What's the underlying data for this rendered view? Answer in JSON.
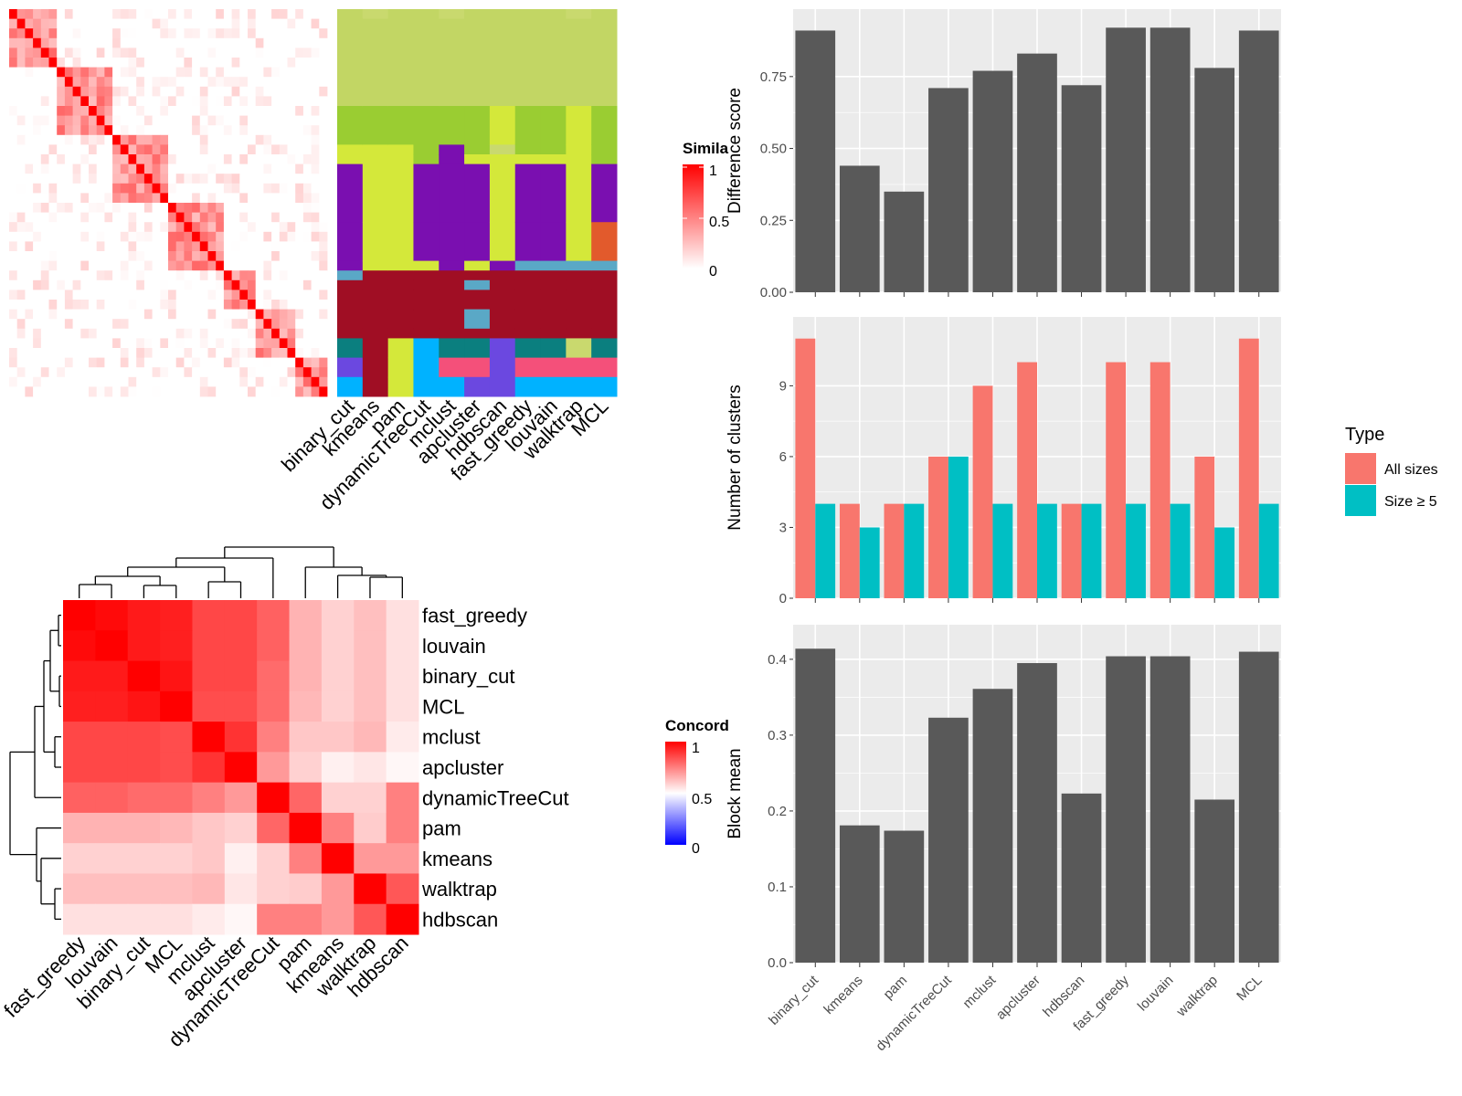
{
  "methods": [
    "binary_cut",
    "kmeans",
    "pam",
    "dynamicTreeCut",
    "mclust",
    "apcluster",
    "hdbscan",
    "fast_greedy",
    "louvain",
    "walktrap",
    "MCL"
  ],
  "similarity_panel": {
    "legend_title": "Simila",
    "legend_ticks": [
      "1",
      "0.5",
      "0"
    ],
    "colors": {
      "high": "#FF0000",
      "low": "#FFFFFF"
    },
    "n_items": 40
  },
  "membership_panel": {
    "palette": [
      "#C2D664",
      "#9ACD32",
      "#D4E83A",
      "#7A0FB0",
      "#A00E24",
      "#5AA8C6",
      "#0B7F7F",
      "#6B48E0",
      "#F4507A",
      "#00B2FF",
      "#E25A2C",
      "#C9D96E"
    ]
  },
  "concordance_panel": {
    "legend_title": "Concord",
    "legend_ticks": [
      "1",
      "0.5",
      "0"
    ],
    "colors": {
      "high": "#FF0000",
      "mid": "#FFFFFF",
      "low": "#0000FF"
    },
    "row_labels": [
      "fast_greedy",
      "louvain",
      "binary_cut",
      "MCL",
      "mclust",
      "apcluster",
      "dynamicTreeCut",
      "pam",
      "kmeans",
      "walktrap",
      "hdbscan"
    ],
    "col_labels": [
      "fast_greedy",
      "louvain",
      "binary_cut",
      "MCL",
      "mclust",
      "apcluster",
      "dynamicTreeCut",
      "pam",
      "kmeans",
      "walktrap",
      "hdbscan"
    ]
  },
  "chart_data": [
    {
      "type": "bar",
      "categories": [
        "binary_cut",
        "kmeans",
        "pam",
        "dynamicTreeCut",
        "mclust",
        "apcluster",
        "hdbscan",
        "fast_greedy",
        "louvain",
        "walktrap",
        "MCL"
      ],
      "values": [
        0.91,
        0.44,
        0.35,
        0.71,
        0.77,
        0.83,
        0.72,
        0.92,
        0.92,
        0.78,
        0.91
      ],
      "ylabel": "Difference score",
      "yticks": [
        "0.00",
        "0.25",
        "0.50",
        "0.75"
      ],
      "ylim": [
        0,
        0.95
      ],
      "bar_color": "#595959"
    },
    {
      "type": "bar",
      "categories": [
        "binary_cut",
        "kmeans",
        "pam",
        "dynamicTreeCut",
        "mclust",
        "apcluster",
        "hdbscan",
        "fast_greedy",
        "louvain",
        "walktrap",
        "MCL"
      ],
      "series": [
        {
          "name": "All sizes",
          "values": [
            11,
            4,
            4,
            6,
            9,
            10,
            4,
            10,
            10,
            6,
            11
          ],
          "color": "#F8766D"
        },
        {
          "name": "Size ≥ 5",
          "values": [
            4,
            3,
            4,
            6,
            4,
            4,
            4,
            4,
            4,
            3,
            4
          ],
          "color": "#00BFC4"
        }
      ],
      "ylabel": "Number of clusters",
      "yticks": [
        "0",
        "3",
        "6",
        "9"
      ],
      "ylim": [
        0,
        11.5
      ],
      "legend_title": "Type",
      "legend_position": "right"
    },
    {
      "type": "bar",
      "categories": [
        "binary_cut",
        "kmeans",
        "pam",
        "dynamicTreeCut",
        "mclust",
        "apcluster",
        "hdbscan",
        "fast_greedy",
        "louvain",
        "walktrap",
        "MCL"
      ],
      "values": [
        0.414,
        0.181,
        0.174,
        0.323,
        0.361,
        0.395,
        0.223,
        0.404,
        0.404,
        0.215,
        0.41
      ],
      "ylabel": "Block mean",
      "yticks": [
        "0.0",
        "0.1",
        "0.2",
        "0.3",
        "0.4"
      ],
      "ylim": [
        0,
        0.43
      ],
      "bar_color": "#595959"
    }
  ]
}
